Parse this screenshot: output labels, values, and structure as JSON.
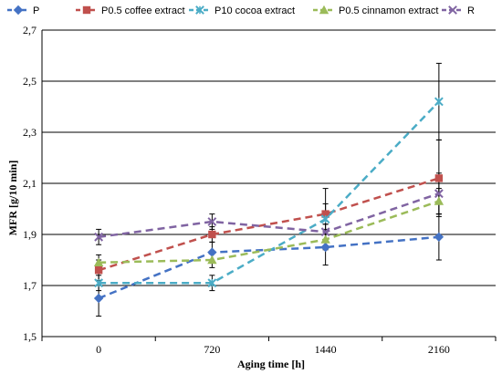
{
  "chart_data": {
    "type": "line",
    "x": [
      "0",
      "720",
      "1440",
      "2160"
    ],
    "xlabel": "Aging time [h]",
    "ylabel": "MFR [g/10 min]",
    "ylim": [
      1.5,
      2.7
    ],
    "yticks": [
      "1,5",
      "1,7",
      "1,9",
      "2,1",
      "2,3",
      "2,5",
      "2,7"
    ],
    "grid": "horizontal",
    "legend_position": "top",
    "series": [
      {
        "name": "P",
        "color": "#4472C4",
        "marker": "diamond",
        "values": [
          1.65,
          1.83,
          1.85,
          1.89
        ],
        "errors": [
          0.07,
          0.04,
          0.07,
          0.09
        ]
      },
      {
        "name": "P0.5 coffee extract",
        "color": "#C0504D",
        "marker": "square",
        "values": [
          1.76,
          1.9,
          1.98,
          2.12
        ],
        "errors": [
          0.04,
          0.03,
          0.04,
          0.15
        ]
      },
      {
        "name": "P10 cocoa extract",
        "color": "#4BACC6",
        "marker": "x-star",
        "values": [
          1.71,
          1.71,
          1.96,
          2.42
        ],
        "errors": [
          0.03,
          0.03,
          0.12,
          0.15
        ]
      },
      {
        "name": "P0.5 cinnamon extract",
        "color": "#9BBB59",
        "marker": "triangle",
        "values": [
          1.79,
          1.8,
          1.88,
          2.03
        ],
        "errors": [
          0.03,
          0.03,
          0.03,
          0.05
        ]
      },
      {
        "name": "R",
        "color": "#8064A2",
        "marker": "x",
        "values": [
          1.89,
          1.95,
          1.91,
          2.06
        ],
        "errors": [
          0.03,
          0.03,
          0.03,
          0.08
        ]
      }
    ]
  }
}
